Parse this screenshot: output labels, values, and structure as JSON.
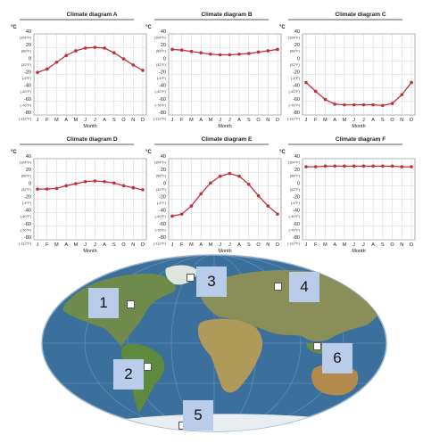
{
  "axis": {
    "unit": "°C",
    "y_ticks": [
      40,
      20,
      0,
      -20,
      -40,
      -60,
      -80
    ],
    "fahrenheit": [
      "(104°F)",
      "(68°F)",
      "(32°F)",
      "(-4°F)",
      "(-40°F)",
      "(-76°F)",
      "(-112°F)"
    ],
    "months": [
      "J",
      "F",
      "M",
      "A",
      "M",
      "J",
      "J",
      "A",
      "S",
      "O",
      "N",
      "D"
    ],
    "xlabel": "Month"
  },
  "chart_data": [
    {
      "type": "line",
      "title": "Climate diagram A",
      "ylim": [
        -80,
        40
      ],
      "values": [
        -17,
        -12,
        -2,
        8,
        15,
        19,
        20,
        19,
        12,
        3,
        -6,
        -14
      ]
    },
    {
      "type": "line",
      "title": "Climate diagram B",
      "ylim": [
        -80,
        40
      ],
      "values": [
        17,
        16,
        14,
        12,
        10,
        9,
        9,
        10,
        11,
        13,
        15,
        17
      ]
    },
    {
      "type": "line",
      "title": "Climate diagram C",
      "ylim": [
        -80,
        40
      ],
      "values": [
        -32,
        -45,
        -57,
        -64,
        -65,
        -65,
        -65,
        -65,
        -66,
        -63,
        -50,
        -32
      ]
    },
    {
      "type": "line",
      "title": "Climate diagram D",
      "ylim": [
        -80,
        40
      ],
      "values": [
        -5,
        -5,
        -4,
        0,
        3,
        6,
        7,
        6,
        4,
        0,
        -3,
        -6
      ]
    },
    {
      "type": "line",
      "title": "Climate diagram E",
      "ylim": [
        -80,
        40
      ],
      "values": [
        -45,
        -42,
        -30,
        -12,
        4,
        14,
        18,
        14,
        2,
        -15,
        -30,
        -42
      ]
    },
    {
      "type": "line",
      "title": "Climate diagram F",
      "ylim": [
        -80,
        40
      ],
      "values": [
        28,
        28,
        29,
        29,
        29,
        29,
        29,
        29,
        29,
        29,
        28,
        28
      ]
    }
  ],
  "map_labels": [
    "1",
    "2",
    "3",
    "4",
    "5",
    "6"
  ],
  "colors": {
    "line": "#c0303a",
    "marker": "#c0303a",
    "grid": "#c8c8c8",
    "ocean": "#3b6f9c",
    "land": "#6d8a4a",
    "label_box": "#b9cdea"
  }
}
